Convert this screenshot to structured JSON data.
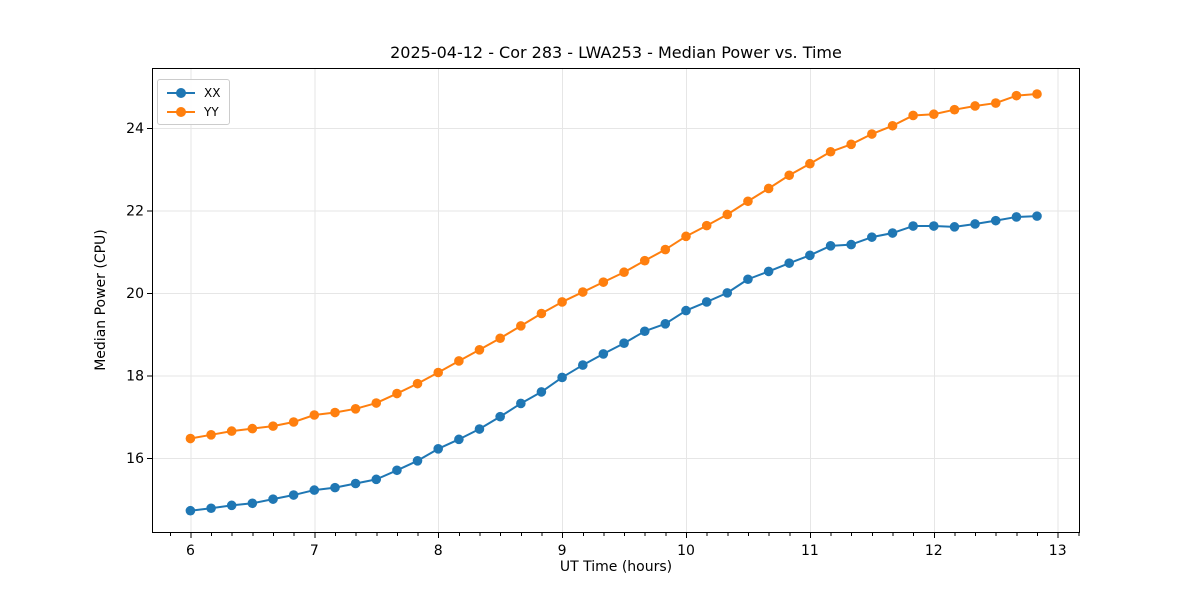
{
  "chart_data": {
    "type": "line",
    "title": "2025-04-12 - Cor 283 - LWA253 - Median Power vs. Time",
    "xlabel": "UT Time (hours)",
    "ylabel": "Median Power (CPU)",
    "xlim": [
      5.69,
      13.18
    ],
    "ylim": [
      14.18,
      25.45
    ],
    "xtick_values": [
      6,
      7,
      8,
      9,
      10,
      11,
      12,
      13
    ],
    "xtick_labels": [
      "6",
      "7",
      "8",
      "9",
      "10",
      "11",
      "12",
      "13"
    ],
    "ytick_values": [
      16,
      18,
      20,
      22,
      24
    ],
    "ytick_labels": [
      "16",
      "18",
      "20",
      "22",
      "24"
    ],
    "minor_xticks_per_hour": 6,
    "grid": true,
    "grid_color": "#e6e6e6",
    "spine_color": "#000000",
    "background_color": "#ffffff",
    "legend_position": "upper left",
    "x": [
      6.0,
      6.167,
      6.333,
      6.5,
      6.667,
      6.833,
      7.0,
      7.167,
      7.333,
      7.5,
      7.667,
      7.833,
      8.0,
      8.167,
      8.333,
      8.5,
      8.667,
      8.833,
      9.0,
      9.167,
      9.333,
      9.5,
      9.667,
      9.833,
      10.0,
      10.167,
      10.333,
      10.5,
      10.667,
      10.833,
      11.0,
      11.167,
      11.333,
      11.5,
      11.667,
      11.833,
      12.0,
      12.167,
      12.333,
      12.5,
      12.667,
      12.833
    ],
    "series": [
      {
        "name": "XX",
        "color": "#1f77b4",
        "values": [
          14.72,
          14.78,
          14.85,
          14.9,
          15.0,
          15.1,
          15.22,
          15.28,
          15.38,
          15.48,
          15.7,
          15.93,
          16.22,
          16.45,
          16.7,
          17.0,
          17.32,
          17.6,
          17.95,
          18.25,
          18.52,
          18.78,
          19.07,
          19.25,
          19.57,
          19.78,
          20.0,
          20.33,
          20.52,
          20.72,
          20.91,
          21.14,
          21.17,
          21.35,
          21.45,
          21.62,
          21.62,
          21.6,
          21.67,
          21.75,
          21.84,
          21.86
        ]
      },
      {
        "name": "YY",
        "color": "#ff7f0e",
        "values": [
          16.47,
          16.56,
          16.65,
          16.71,
          16.77,
          16.87,
          17.04,
          17.1,
          17.19,
          17.33,
          17.56,
          17.8,
          18.07,
          18.35,
          18.62,
          18.9,
          19.2,
          19.5,
          19.78,
          20.02,
          20.26,
          20.5,
          20.78,
          21.05,
          21.37,
          21.63,
          21.9,
          22.22,
          22.53,
          22.85,
          23.13,
          23.42,
          23.6,
          23.85,
          24.05,
          24.3,
          24.33,
          24.44,
          24.53,
          24.6,
          24.78,
          24.82
        ]
      }
    ]
  }
}
